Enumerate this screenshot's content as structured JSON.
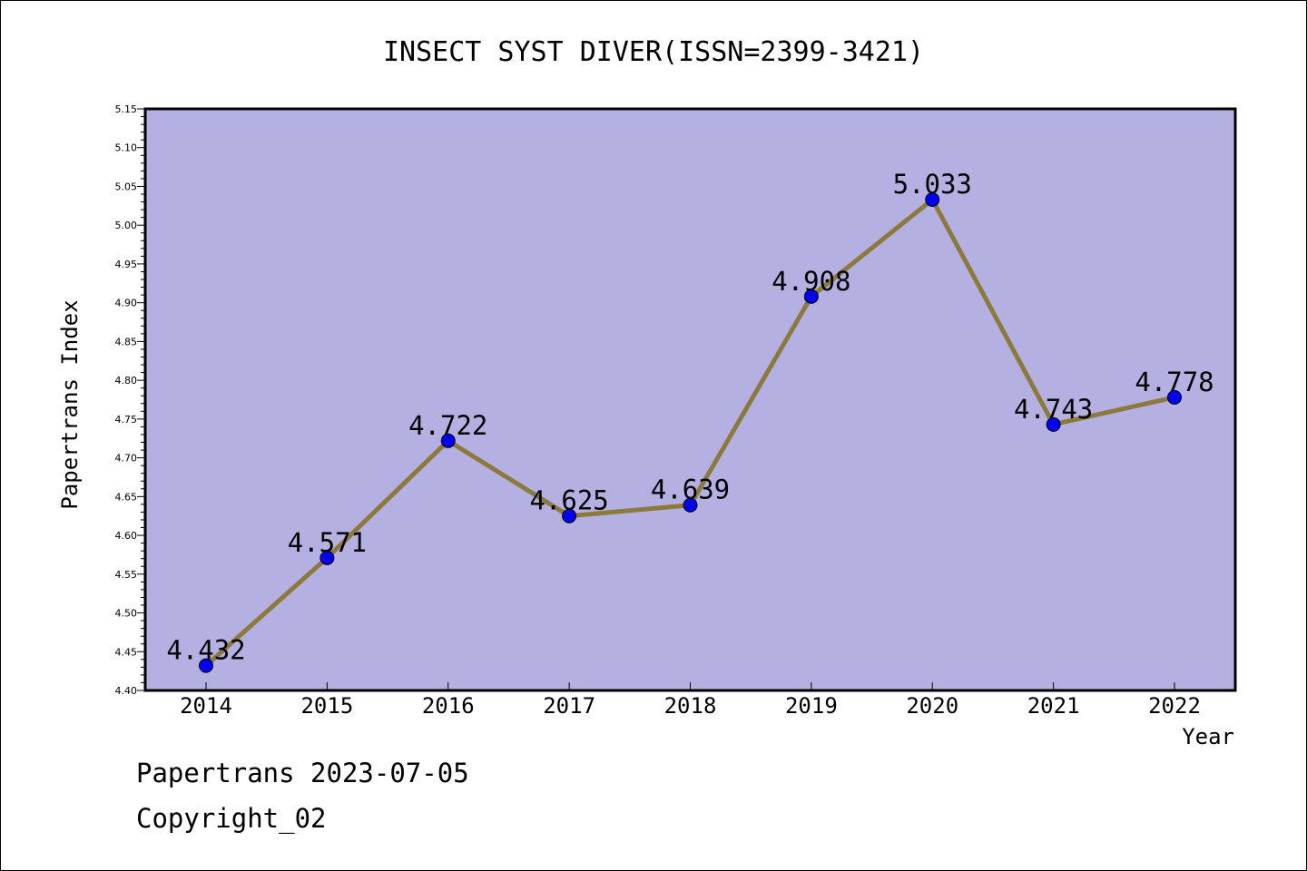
{
  "chart_data": {
    "type": "line",
    "title": "INSECT SYST DIVER(ISSN=2399-3421)",
    "xlabel": "Year",
    "ylabel": "Papertrans Index",
    "categories": [
      "2014",
      "2015",
      "2016",
      "2017",
      "2018",
      "2019",
      "2020",
      "2021",
      "2022"
    ],
    "series": [
      {
        "values": [
          4.432,
          4.571,
          4.722,
          4.625,
          4.639,
          4.908,
          5.033,
          4.743,
          4.778
        ],
        "labels": [
          "4.432",
          "4.571",
          "4.722",
          "4.625",
          "4.639",
          "4.908",
          "5.033",
          "4.743",
          "4.778"
        ]
      }
    ],
    "ylim": [
      4.4,
      5.15
    ],
    "yticks": [
      "4.40",
      "4.45",
      "4.50",
      "4.55",
      "4.60",
      "4.65",
      "4.70",
      "4.75",
      "4.80",
      "4.85",
      "4.90",
      "4.95",
      "5.00",
      "5.05",
      "5.10",
      "5.15"
    ],
    "grid": false,
    "colors": {
      "plot_background": "#b5b0e2",
      "line": "#8b7a3c",
      "marker": "#0000ee"
    }
  },
  "footer": {
    "line1": "Papertrans 2023-07-05",
    "line2": "Copyright_02"
  }
}
